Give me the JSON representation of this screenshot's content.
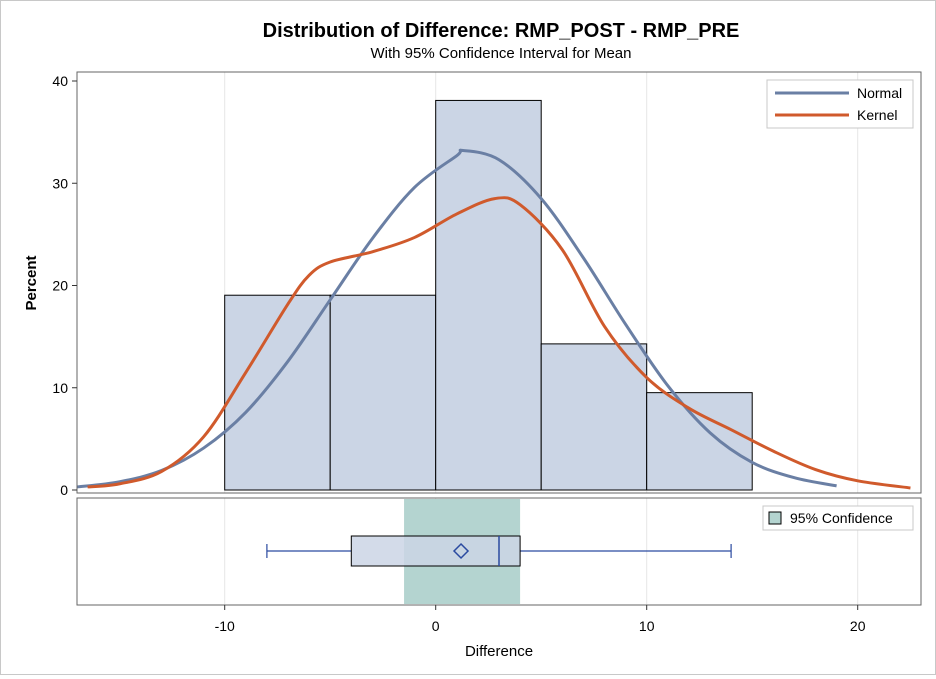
{
  "chart_data": {
    "type": "histogram",
    "title": "Distribution of Difference: RMP_POST - RMP_PRE",
    "subtitle": "With 95% Confidence Interval for Mean",
    "xlabel": "Difference",
    "ylabel": "Percent",
    "xlim": [
      -17,
      23
    ],
    "ylim": [
      0,
      40
    ],
    "xticks": [
      -10,
      0,
      10,
      20
    ],
    "yticks": [
      0,
      10,
      20,
      30,
      40
    ],
    "grid": "vertical",
    "bins": [
      {
        "start": -10,
        "end": -5,
        "value": 19.05
      },
      {
        "start": -5,
        "end": 0,
        "value": 19.05
      },
      {
        "start": 0,
        "end": 5,
        "value": 38.1
      },
      {
        "start": 5,
        "end": 10,
        "value": 14.29
      },
      {
        "start": 10,
        "end": 15,
        "value": 9.52
      }
    ],
    "series": [
      {
        "name": "Normal",
        "color": "#6a7fa4",
        "points": [
          [
            -17,
            0.3
          ],
          [
            -15,
            0.8
          ],
          [
            -13,
            1.9
          ],
          [
            -11,
            4.1
          ],
          [
            -9,
            7.6
          ],
          [
            -7,
            12.6
          ],
          [
            -5,
            18.6
          ],
          [
            -3,
            24.6
          ],
          [
            -1,
            29.6
          ],
          [
            1,
            32.7
          ],
          [
            1.3,
            33.2
          ],
          [
            3,
            32.3
          ],
          [
            5,
            28.5
          ],
          [
            7,
            22.7
          ],
          [
            9,
            16.2
          ],
          [
            11,
            10.2
          ],
          [
            13,
            5.6
          ],
          [
            15,
            2.7
          ],
          [
            17,
            1.2
          ],
          [
            19,
            0.4
          ]
        ]
      },
      {
        "name": "Kernel",
        "color": "#d05a2c",
        "points": [
          [
            -16.5,
            0.3
          ],
          [
            -15,
            0.6
          ],
          [
            -13,
            1.8
          ],
          [
            -11,
            5.2
          ],
          [
            -9,
            11.5
          ],
          [
            -7,
            18.2
          ],
          [
            -6,
            21.0
          ],
          [
            -5,
            22.3
          ],
          [
            -3,
            23.3
          ],
          [
            -1,
            24.7
          ],
          [
            1,
            27.0
          ],
          [
            2.8,
            28.5
          ],
          [
            4,
            27.9
          ],
          [
            6,
            23.5
          ],
          [
            8,
            16.0
          ],
          [
            10,
            11.0
          ],
          [
            12,
            8.0
          ],
          [
            14,
            5.9
          ],
          [
            16,
            3.8
          ],
          [
            18,
            2.0
          ],
          [
            20,
            0.9
          ],
          [
            22.5,
            0.2
          ]
        ]
      }
    ],
    "legend": {
      "position": "top-right",
      "entries": [
        "Normal",
        "Kernel"
      ]
    },
    "boxplot": {
      "min": -8,
      "q1": -4,
      "median": 3,
      "mean": 1.2,
      "q3": 4,
      "max": 14,
      "ci_low": -1.5,
      "ci_high": 4,
      "legend": "95% Confidence",
      "box_color": "#cbd5e5",
      "line_color": "#2a4aa0",
      "ci_color": "#b4d4d0"
    },
    "colors": {
      "bar_fill": "#cbd5e5",
      "bar_stroke": "#000000",
      "grid": "#e6e6e6"
    }
  }
}
